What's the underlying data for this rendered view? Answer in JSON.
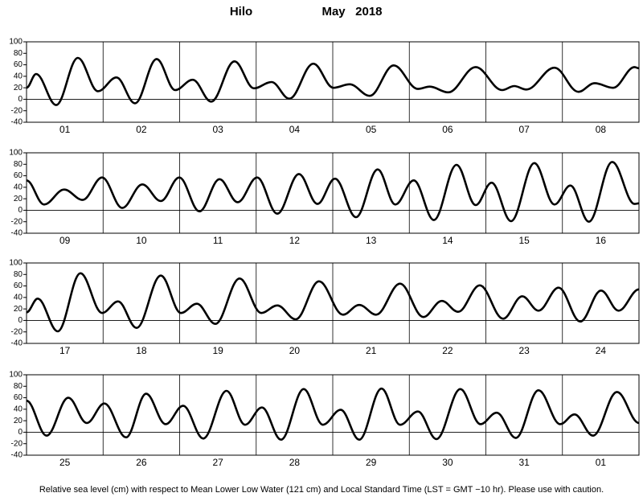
{
  "header": {
    "station": "Hilo",
    "month": "May   2018"
  },
  "footnote": "Relative sea level (cm) with respect to Mean Lower Low Water (121 cm) and Local Standard Time (LST = GMT −10 hr). Please use with caution.",
  "chart_data": [
    {
      "type": "line",
      "categories": [
        "01",
        "02",
        "03",
        "04",
        "05",
        "06",
        "07",
        "08"
      ],
      "xlim": [
        0,
        192
      ],
      "ylim": [
        -40,
        100
      ],
      "yticks": [
        -40,
        -20,
        0,
        20,
        40,
        60,
        80,
        100
      ],
      "series": [
        {
          "color": "#000000",
          "x": [
            0,
            3,
            9.3,
            16.1,
            22.4,
            28.2,
            34,
            40.8,
            46.6,
            52.1,
            57.9,
            65.2,
            71.3,
            76.8,
            82.4,
            89.9,
            96.2,
            101.3,
            107.6,
            115.1,
            122.7,
            126.4,
            132.2,
            140.8,
            149.1,
            152.9,
            156.7,
            165.5,
            173,
            178.1,
            183.9,
            190.6,
            192
          ],
          "values": [
            20,
            44,
            -10,
            72,
            14,
            38,
            -7,
            70,
            16,
            34,
            -4,
            66,
            19,
            30,
            1,
            62,
            20,
            26,
            6,
            59,
            18,
            22,
            12,
            56,
            16,
            23,
            17,
            55,
            13,
            28,
            20,
            56,
            54
          ]
        }
      ]
    },
    {
      "type": "line",
      "categories": [
        "09",
        "10",
        "11",
        "12",
        "13",
        "14",
        "15",
        "16"
      ],
      "xlim": [
        0,
        192
      ],
      "ylim": [
        -40,
        100
      ],
      "yticks": [
        -40,
        -20,
        0,
        20,
        40,
        60,
        80,
        100
      ],
      "series": [
        {
          "color": "#000000",
          "x": [
            0,
            5.5,
            11.8,
            17.6,
            23.7,
            30,
            36.3,
            42.1,
            47.9,
            54.2,
            60.5,
            66.2,
            72.3,
            78.6,
            85.4,
            91.2,
            96.7,
            103.3,
            110.1,
            115.6,
            121.4,
            127.7,
            134.8,
            140.8,
            145.8,
            151.9,
            159.2,
            165.5,
            170.5,
            176.3,
            183.6,
            190.6,
            192
          ],
          "values": [
            52,
            10,
            36,
            18,
            57,
            4,
            45,
            16,
            57,
            -2,
            54,
            14,
            57,
            -6,
            63,
            11,
            55,
            -12,
            71,
            10,
            52,
            -17,
            79,
            9,
            48,
            -19,
            82,
            10,
            43,
            -20,
            84,
            11,
            12
          ]
        }
      ]
    },
    {
      "type": "line",
      "categories": [
        "17",
        "18",
        "19",
        "20",
        "21",
        "22",
        "23",
        "24"
      ],
      "xlim": [
        0,
        192
      ],
      "ylim": [
        -40,
        100
      ],
      "yticks": [
        -40,
        -20,
        0,
        20,
        40,
        60,
        80,
        100
      ],
      "series": [
        {
          "color": "#000000",
          "x": [
            0,
            3.5,
            9.8,
            16.9,
            23.7,
            28.7,
            34.5,
            42.1,
            48.4,
            53.4,
            59.2,
            66.8,
            73.6,
            78.6,
            84.4,
            91.7,
            99.2,
            104.3,
            109.6,
            117.1,
            124.4,
            130.2,
            135.3,
            142.1,
            149.4,
            155.4,
            160.5,
            166.8,
            173.6,
            180.1,
            185.6,
            192
          ],
          "values": [
            14,
            38,
            -19,
            82,
            13,
            33,
            -13,
            78,
            13,
            29,
            -6,
            73,
            13,
            26,
            2,
            68,
            10,
            27,
            10,
            64,
            6,
            34,
            15,
            61,
            3,
            42,
            17,
            57,
            -2,
            52,
            17,
            54
          ]
        }
      ]
    },
    {
      "type": "line",
      "categories": [
        "25",
        "26",
        "27",
        "28",
        "29",
        "30",
        "31",
        "01"
      ],
      "xlim": [
        0,
        192
      ],
      "ylim": [
        -40,
        100
      ],
      "yticks": [
        -40,
        -20,
        0,
        20,
        40,
        60,
        80,
        100
      ],
      "series": [
        {
          "color": "#000000",
          "x": [
            0,
            6.3,
            13.1,
            18.9,
            24.4,
            31.2,
            37.5,
            43.6,
            49.1,
            55.4,
            62.7,
            68.5,
            73.8,
            79.8,
            86.9,
            92.9,
            98.5,
            104.3,
            111.3,
            117.1,
            122.7,
            128.5,
            136,
            142.3,
            147.4,
            153.4,
            160.5,
            167.3,
            171.8,
            177.6,
            185.1,
            192
          ],
          "values": [
            55,
            -6,
            60,
            16,
            50,
            -9,
            67,
            14,
            46,
            -11,
            72,
            13,
            43,
            -13,
            75,
            13,
            39,
            -13,
            76,
            13,
            36,
            -12,
            75,
            14,
            34,
            -10,
            73,
            14,
            31,
            -6,
            70,
            16
          ]
        }
      ]
    }
  ]
}
